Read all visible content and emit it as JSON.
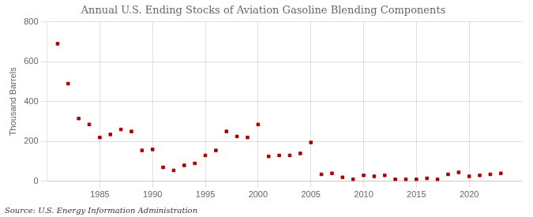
{
  "chart_data": {
    "type": "scatter",
    "title": "Annual U.S. Ending Stocks of Aviation Gasoline Blending Components",
    "ylabel": "Thousand Barrels",
    "annotations": [
      "Source: U.S. Energy Information Administration"
    ],
    "x": [
      1981,
      1982,
      1983,
      1984,
      1985,
      1986,
      1987,
      1988,
      1989,
      1990,
      1991,
      1992,
      1993,
      1994,
      1995,
      1996,
      1997,
      1998,
      1999,
      2000,
      2001,
      2002,
      2003,
      2004,
      2005,
      2006,
      2007,
      2008,
      2009,
      2010,
      2011,
      2012,
      2013,
      2014,
      2015,
      2016,
      2017,
      2018,
      2019,
      2020,
      2021,
      2022,
      2023
    ],
    "values": [
      690,
      490,
      315,
      285,
      220,
      235,
      260,
      250,
      155,
      160,
      70,
      55,
      80,
      90,
      130,
      155,
      250,
      225,
      220,
      285,
      125,
      130,
      130,
      140,
      195,
      35,
      40,
      20,
      10,
      30,
      25,
      30,
      10,
      10,
      10,
      15,
      10,
      35,
      45,
      25,
      30,
      35,
      40
    ],
    "color": "#aa0000",
    "marker": "square",
    "xlim": [
      1980,
      2025
    ],
    "xticks": [
      1985,
      1990,
      1995,
      2000,
      2005,
      2010,
      2015,
      2020
    ],
    "ylim": [
      0,
      800
    ],
    "yticks": [
      0,
      200,
      400,
      600,
      800
    ],
    "grid": true
  }
}
